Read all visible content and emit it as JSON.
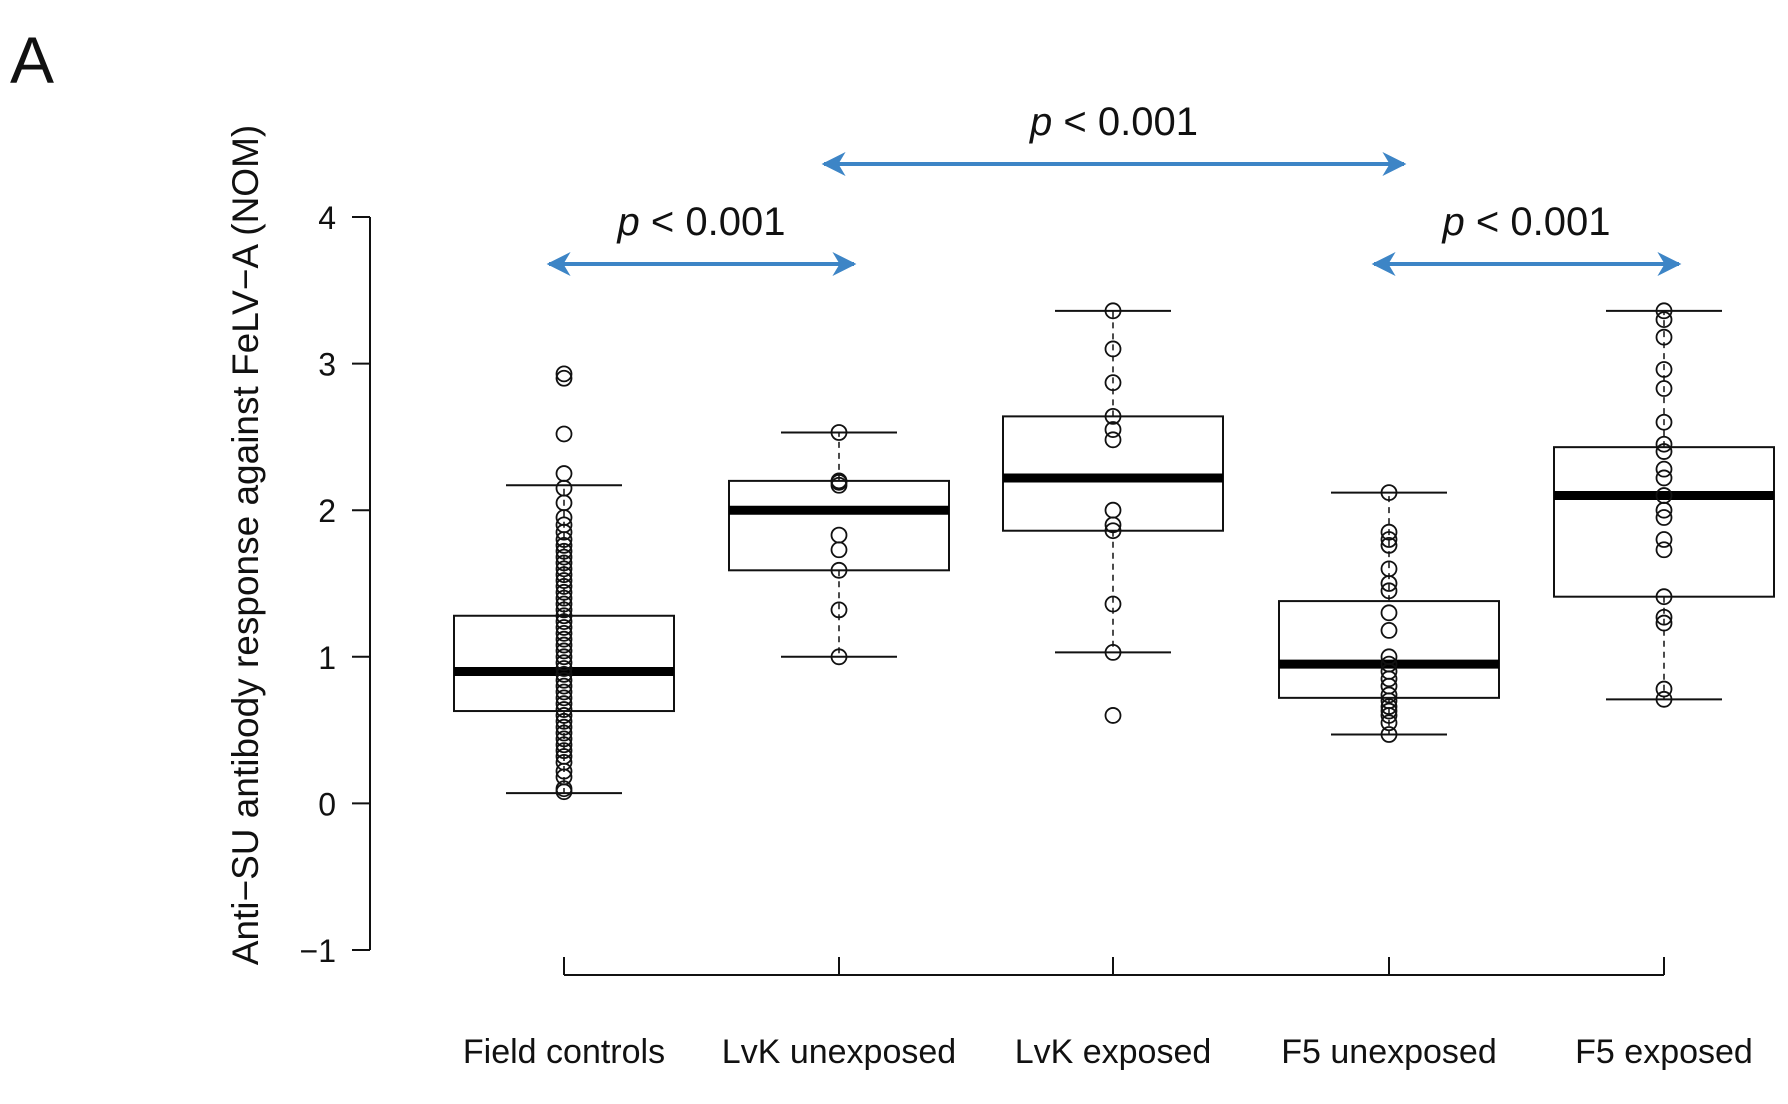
{
  "panel_label": "A",
  "chart_data": {
    "type": "boxplot",
    "title": "",
    "ylabel": "Anti−SU antibody response against FeLV−A (NOM)",
    "xlabel": "",
    "ylim": [
      -1,
      4
    ],
    "yticks": [
      4,
      3,
      2,
      1,
      0,
      -1
    ],
    "ytick_labels": [
      "4",
      "3",
      "2",
      "1",
      "0",
      "−1"
    ],
    "categories": [
      "Field controls",
      "LvK unexposed",
      "LvK exposed",
      "F5 unexposed",
      "F5 exposed"
    ],
    "boxes": [
      {
        "name": "Field controls",
        "whisker_low": 0.07,
        "q1": 0.63,
        "median": 0.9,
        "q3": 1.28,
        "whisker_high": 2.17,
        "points": [
          0.08,
          0.1,
          0.18,
          0.22,
          0.28,
          0.32,
          0.36,
          0.4,
          0.44,
          0.48,
          0.52,
          0.56,
          0.6,
          0.64,
          0.68,
          0.72,
          0.76,
          0.8,
          0.84,
          0.88,
          0.92,
          0.96,
          1.0,
          1.04,
          1.08,
          1.12,
          1.16,
          1.2,
          1.24,
          1.28,
          1.32,
          1.36,
          1.4,
          1.44,
          1.48,
          1.52,
          1.56,
          1.6,
          1.64,
          1.68,
          1.72,
          1.76,
          1.8,
          1.85,
          1.9,
          1.95,
          2.05,
          2.15,
          2.25,
          2.52,
          2.9,
          2.93
        ]
      },
      {
        "name": "LvK unexposed",
        "whisker_low": 1.0,
        "q1": 1.59,
        "median": 2.0,
        "q3": 2.2,
        "whisker_high": 2.53,
        "points": [
          1.0,
          1.32,
          1.59,
          1.73,
          1.83,
          2.17,
          2.19,
          2.2,
          2.53
        ]
      },
      {
        "name": "LvK exposed",
        "whisker_low": 1.03,
        "q1": 1.86,
        "median": 2.22,
        "q3": 2.64,
        "whisker_high": 3.36,
        "points": [
          0.6,
          1.03,
          1.36,
          1.86,
          1.9,
          2.0,
          2.48,
          2.55,
          2.64,
          2.87,
          3.1,
          3.36
        ]
      },
      {
        "name": "F5 unexposed",
        "whisker_low": 0.47,
        "q1": 0.72,
        "median": 0.95,
        "q3": 1.38,
        "whisker_high": 2.12,
        "points": [
          0.47,
          0.55,
          0.6,
          0.63,
          0.66,
          0.7,
          0.74,
          0.8,
          0.85,
          0.9,
          0.95,
          1.0,
          1.18,
          1.3,
          1.45,
          1.5,
          1.6,
          1.76,
          1.8,
          1.85,
          2.12
        ]
      },
      {
        "name": "F5 exposed",
        "whisker_low": 0.71,
        "q1": 1.41,
        "median": 2.1,
        "q3": 2.43,
        "whisker_high": 3.36,
        "points": [
          0.71,
          0.78,
          1.23,
          1.27,
          1.41,
          1.73,
          1.8,
          1.95,
          2.0,
          2.1,
          2.22,
          2.28,
          2.4,
          2.45,
          2.6,
          2.83,
          2.96,
          3.18,
          3.3,
          3.36
        ]
      }
    ],
    "annotations": [
      {
        "from": "Field controls",
        "to": "LvK unexposed",
        "level": "low",
        "p_symbol": "p",
        "p_text": " < 0.001"
      },
      {
        "from": "LvK unexposed",
        "to": "F5 unexposed",
        "level": "high",
        "p_symbol": "p",
        "p_text": " < 0.001"
      },
      {
        "from": "F5 unexposed",
        "to": "F5 exposed",
        "level": "low",
        "p_symbol": "p",
        "p_text": " < 0.001"
      }
    ],
    "arrow_color": "#3d85c6"
  }
}
